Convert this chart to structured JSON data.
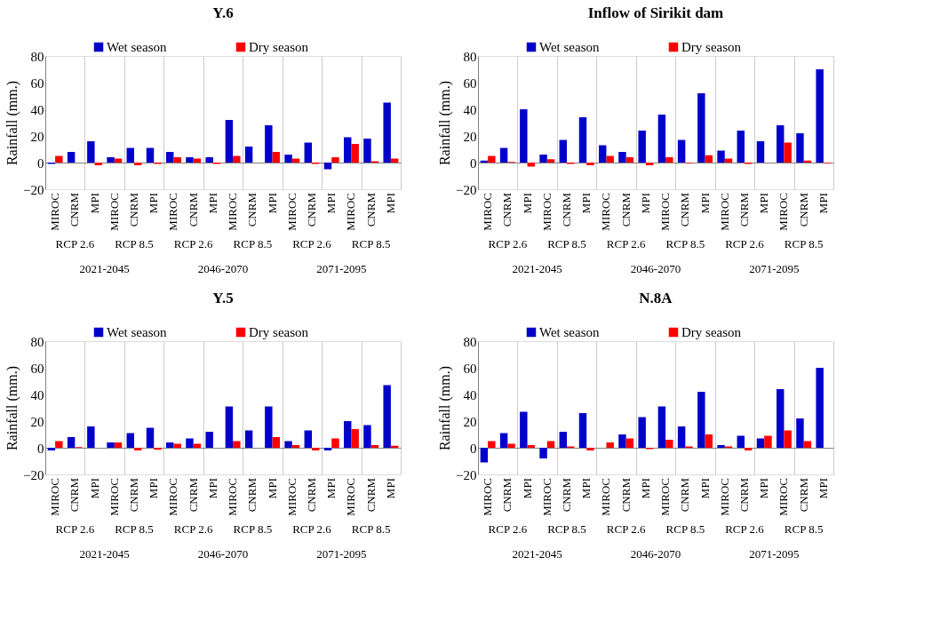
{
  "chart_data": [
    {
      "type": "bar",
      "title": "Y.6",
      "ylabel": "Rainfall (mm.)",
      "categories": [
        "MIROC",
        "CNRM",
        "MPI",
        "MIROC",
        "CNRM",
        "MPI",
        "MIROC",
        "CNRM",
        "MPI",
        "MIROC",
        "CNRM",
        "MPI",
        "MIROC",
        "CNRM",
        "MPI",
        "MIROC",
        "CNRM",
        "MPI"
      ],
      "series": [
        {
          "name": "Wet season",
          "color": "#0000cc",
          "values": [
            -1,
            8,
            16,
            4,
            11,
            11,
            8,
            4,
            4,
            32,
            12,
            28,
            6,
            15,
            -5,
            19,
            18,
            45
          ]
        },
        {
          "name": "Dry season",
          "color": "#ff0000",
          "values": [
            5,
            0,
            -2,
            3,
            -2,
            -1,
            4,
            3,
            -1,
            5,
            0,
            8,
            3,
            -1,
            4,
            14,
            1,
            3
          ]
        }
      ],
      "ylim": [
        -20,
        80
      ],
      "yticks": [
        -20,
        0,
        20,
        40,
        60,
        80
      ],
      "grid": "x",
      "legend": "top",
      "annotations": [
        "RCP 2.6",
        "RCP 8.5",
        "RCP 2.6",
        "RCP 8.5",
        "RCP 2.6",
        "RCP 8.5",
        "2021-2045",
        "2046-2070",
        "2071-2095"
      ]
    },
    {
      "type": "bar",
      "title": "Inflow of Sirikit dam",
      "ylabel": "Rainfall (mm.)",
      "categories": [
        "MIROC",
        "CNRM",
        "MPI",
        "MIROC",
        "CNRM",
        "MPI",
        "MIROC",
        "CNRM",
        "MPI",
        "MIROC",
        "CNRM",
        "MPI",
        "MIROC",
        "CNRM",
        "MPI",
        "MIROC",
        "CNRM",
        "MPI"
      ],
      "series": [
        {
          "name": "Wet season",
          "color": "#0000cc",
          "values": [
            1.5,
            11,
            40,
            6,
            17,
            34,
            13,
            8,
            24,
            36,
            17,
            52,
            9,
            24,
            16,
            28,
            22,
            70
          ]
        },
        {
          "name": "Dry season",
          "color": "#ff0000",
          "values": [
            5,
            0.5,
            -3,
            2.5,
            -1,
            -2,
            5,
            4,
            -2,
            4,
            -0.5,
            5.5,
            3,
            -1,
            0,
            15,
            1.5,
            -0.5
          ]
        }
      ],
      "ylim": [
        -20,
        80
      ],
      "yticks": [
        -20,
        0,
        20,
        40,
        60,
        80
      ],
      "grid": "x",
      "legend": "top",
      "annotations": [
        "RCP 2.6",
        "RCP 8.5",
        "RCP 2.6",
        "RCP 8.5",
        "RCP 2.6",
        "RCP 8.5",
        "2021-2045",
        "2046-2070",
        "2071-2095"
      ]
    },
    {
      "type": "bar",
      "title": "Y.5",
      "ylabel": "Rainfall (mm.)",
      "categories": [
        "MIROC",
        "CNRM",
        "MPI",
        "MIROC",
        "CNRM",
        "MPI",
        "MIROC",
        "CNRM",
        "MPI",
        "MIROC",
        "CNRM",
        "MPI",
        "MIROC",
        "CNRM",
        "MPI",
        "MIROC",
        "CNRM",
        "MPI"
      ],
      "series": [
        {
          "name": "Wet season",
          "color": "#0000cc",
          "values": [
            -2,
            8,
            16,
            4,
            11,
            15,
            4,
            7,
            12,
            31,
            13,
            31,
            5,
            13,
            -2,
            20,
            17,
            47
          ]
        },
        {
          "name": "Dry season",
          "color": "#ff0000",
          "values": [
            5,
            0.5,
            0,
            4,
            -2,
            -1.5,
            3,
            3,
            0,
            5,
            0,
            8,
            2,
            -2,
            7,
            14,
            2,
            1.5
          ]
        }
      ],
      "ylim": [
        -20,
        80
      ],
      "yticks": [
        -20,
        0,
        20,
        40,
        60,
        80
      ],
      "grid": "x",
      "legend": "top",
      "annotations": [
        "RCP 2.6",
        "RCP 8.5",
        "RCP 2.6",
        "RCP 8.5",
        "RCP 2.6",
        "RCP 8.5",
        "2021-2045",
        "2046-2070",
        "2071-2095"
      ]
    },
    {
      "type": "bar",
      "title": "N.8A",
      "ylabel": "Rainfall (mm.)",
      "categories": [
        "MIROC",
        "CNRM",
        "MPI",
        "MIROC",
        "CNRM",
        "MPI",
        "MIROC",
        "CNRM",
        "MPI",
        "MIROC",
        "CNRM",
        "MPI",
        "MIROC",
        "CNRM",
        "MPI",
        "MIROC",
        "CNRM",
        "MPI"
      ],
      "series": [
        {
          "name": "Wet season",
          "color": "#0000cc",
          "values": [
            -11,
            11,
            27,
            -8,
            12,
            26,
            0,
            10,
            23,
            31,
            16,
            42,
            2,
            9,
            7,
            44,
            22,
            60
          ]
        },
        {
          "name": "Dry season",
          "color": "#ff0000",
          "values": [
            5,
            3,
            2,
            5,
            1,
            -2,
            4,
            7,
            -1,
            6,
            1,
            10,
            1,
            -2,
            9,
            13,
            5,
            0
          ]
        }
      ],
      "ylim": [
        -20,
        80
      ],
      "yticks": [
        -20,
        0,
        20,
        40,
        60,
        80
      ],
      "grid": "x",
      "legend": "top",
      "annotations": [
        "RCP 2.6",
        "RCP 8.5",
        "RCP 2.6",
        "RCP 8.5",
        "RCP 2.6",
        "RCP 8.5",
        "2021-2045",
        "2046-2070",
        "2071-2095"
      ]
    }
  ]
}
